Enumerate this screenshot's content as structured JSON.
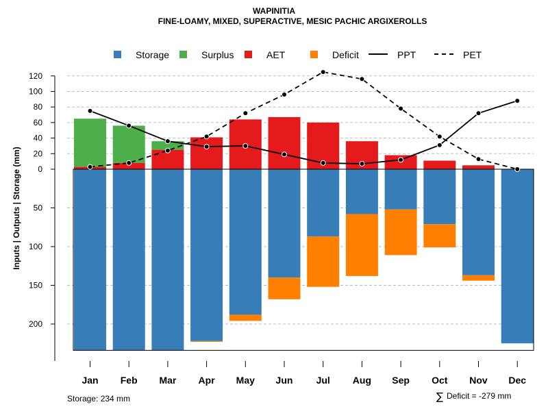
{
  "title": "WAPINITIA",
  "subtitle": "FINE-LOAMY, MIXED, SUPERACTIVE, MESIC PACHIC ARGIXEROLLS",
  "legend": {
    "storage": "Storage",
    "surplus": "Surplus",
    "aet": "AET",
    "deficit": "Deficit",
    "ppt": "PPT",
    "pet": "PET"
  },
  "colors": {
    "storage": "#377eb8",
    "surplus": "#4daf4a",
    "aet": "#e41a1c",
    "deficit": "#ff7f00",
    "line": "#000000"
  },
  "ylabel": "Inputs | Outputs | Storage     (mm)",
  "footer": {
    "storage": "Storage: 234 mm",
    "deficit_symbol": "∑",
    "deficit": "Deficit = -279 mm"
  },
  "chart_data": {
    "type": "bar",
    "categories": [
      "Jan",
      "Feb",
      "Mar",
      "Apr",
      "May",
      "Jun",
      "Jul",
      "Aug",
      "Sep",
      "Oct",
      "Nov",
      "Dec"
    ],
    "upper_ticks": [
      0,
      20,
      40,
      60,
      80,
      100,
      120
    ],
    "lower_ticks": [
      50,
      100,
      150,
      200
    ],
    "upper_ylim": [
      0,
      130
    ],
    "lower_ylim": [
      0,
      234
    ],
    "series": [
      {
        "name": "AET",
        "values": [
          3,
          8,
          25,
          41,
          64,
          67,
          60,
          36,
          18,
          11,
          5,
          0
        ]
      },
      {
        "name": "Surplus",
        "values": [
          62,
          48,
          11,
          0,
          0,
          0,
          0,
          0,
          0,
          0,
          0,
          0
        ]
      },
      {
        "name": "Storage",
        "values": [
          234,
          234,
          234,
          222,
          188,
          140,
          87,
          58,
          52,
          71,
          137,
          225
        ]
      },
      {
        "name": "Deficit",
        "values": [
          0,
          0,
          0,
          1,
          8,
          28,
          65,
          80,
          59,
          30,
          7,
          0
        ]
      },
      {
        "name": "PPT",
        "values": [
          75,
          56,
          36,
          29,
          30,
          19,
          8,
          7,
          12,
          31,
          72,
          88
        ]
      },
      {
        "name": "PET",
        "values": [
          3,
          8,
          24,
          42,
          72,
          96,
          125,
          116,
          78,
          42,
          13,
          0
        ]
      }
    ]
  }
}
